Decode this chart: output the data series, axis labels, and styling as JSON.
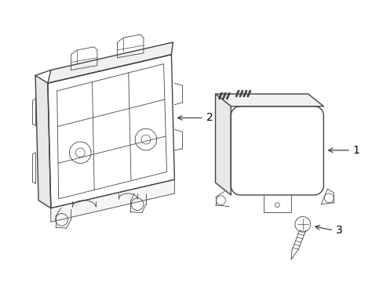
{
  "bg_color": "#ffffff",
  "line_color": "#444444",
  "label_color": "#000000",
  "figsize": [
    4.89,
    3.6
  ],
  "dpi": 100,
  "lw_main": 1.0,
  "lw_thin": 0.6,
  "lw_detail": 0.5
}
